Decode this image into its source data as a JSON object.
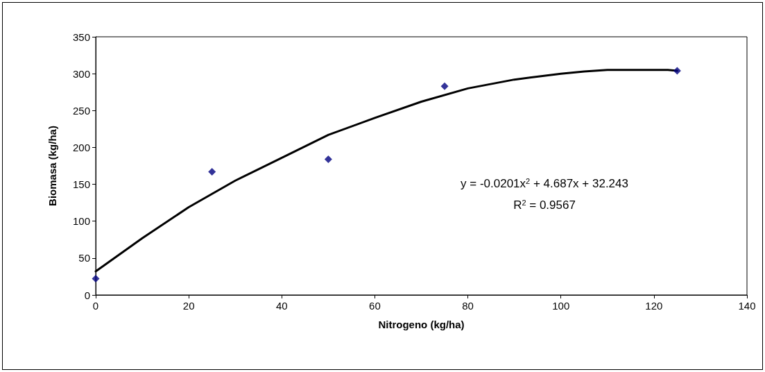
{
  "chart_data": {
    "type": "scatter",
    "xlabel": "Nitrogeno (kg/ha)",
    "ylabel": "Biomasa (kg/ha)",
    "xlim": [
      0,
      140
    ],
    "xticks": [
      0,
      20,
      40,
      60,
      80,
      100,
      120,
      140
    ],
    "ylim": [
      0,
      350
    ],
    "yticks": [
      0,
      50,
      100,
      150,
      200,
      250,
      300,
      350
    ],
    "grid": false,
    "series": [
      {
        "color": "#000080",
        "marker": "diamond",
        "x": [
          0,
          25,
          50,
          75,
          125
        ],
        "values": [
          22,
          167,
          184,
          283,
          304
        ]
      },
      {
        "type": "line",
        "color": "#000000",
        "marker": "none",
        "line_style": "solid",
        "x": [
          0,
          10,
          20,
          30,
          40,
          50,
          60,
          70,
          80,
          90,
          100,
          105,
          110,
          123,
          125
        ],
        "values": [
          32,
          77,
          119,
          155,
          186,
          217,
          240,
          262,
          280,
          292,
          300,
          303,
          305,
          305,
          304
        ]
      }
    ],
    "annotations": [
      "y = -0.0201x$^{2}$ + 4.687x + 32.243",
      "R$^{2}$ = 0.9567"
    ]
  }
}
